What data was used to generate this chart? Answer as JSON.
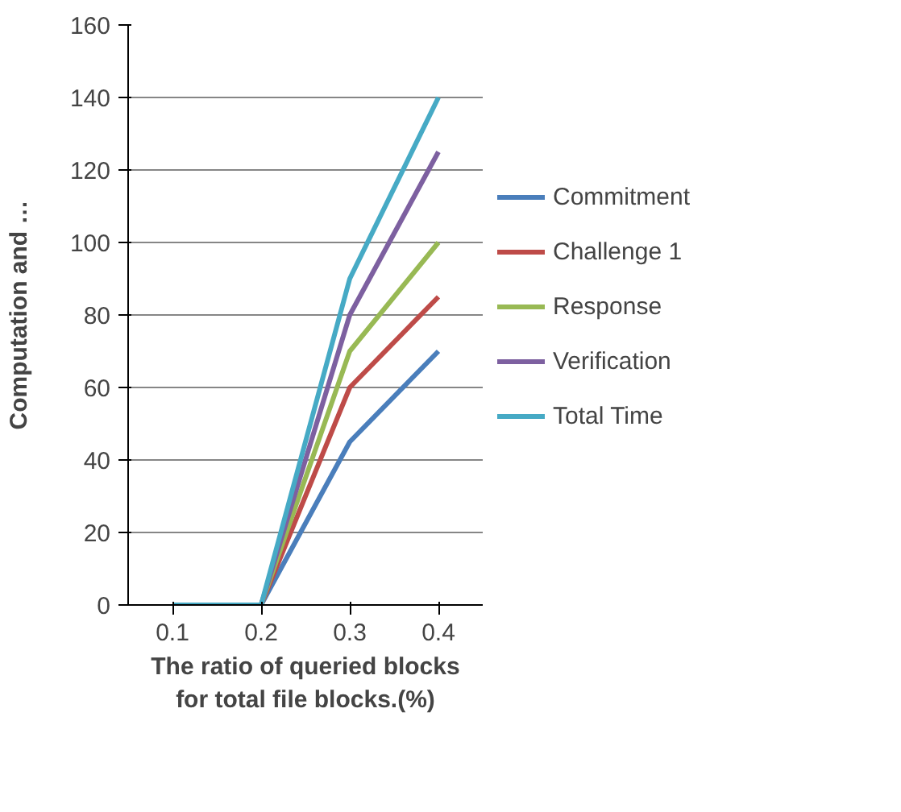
{
  "chart_data": {
    "type": "line",
    "xlabel": "The ratio of queried blocks for total file blocks.(%)",
    "ylabel": "Computation and …",
    "categories": [
      "0.1",
      "0.2",
      "0.3",
      "0.4"
    ],
    "series": [
      {
        "name": "Commitment",
        "color": "#4a7ebb",
        "values": [
          0,
          0,
          45,
          70
        ]
      },
      {
        "name": "Challenge 1",
        "color": "#be4b48",
        "values": [
          0,
          0,
          60,
          85
        ]
      },
      {
        "name": "Response",
        "color": "#98b954",
        "values": [
          0,
          0,
          70,
          100
        ]
      },
      {
        "name": "Verification",
        "color": "#7d60a0",
        "values": [
          0,
          0,
          80,
          125
        ]
      },
      {
        "name": "Total Time",
        "color": "#46aac5",
        "values": [
          0,
          0,
          90,
          140
        ]
      }
    ],
    "ylim": [
      0,
      160
    ],
    "yticks": [
      0,
      20,
      40,
      60,
      80,
      100,
      120,
      140,
      160
    ],
    "grid": "y",
    "legend": "right",
    "marker": "none",
    "line_style": "solid"
  }
}
